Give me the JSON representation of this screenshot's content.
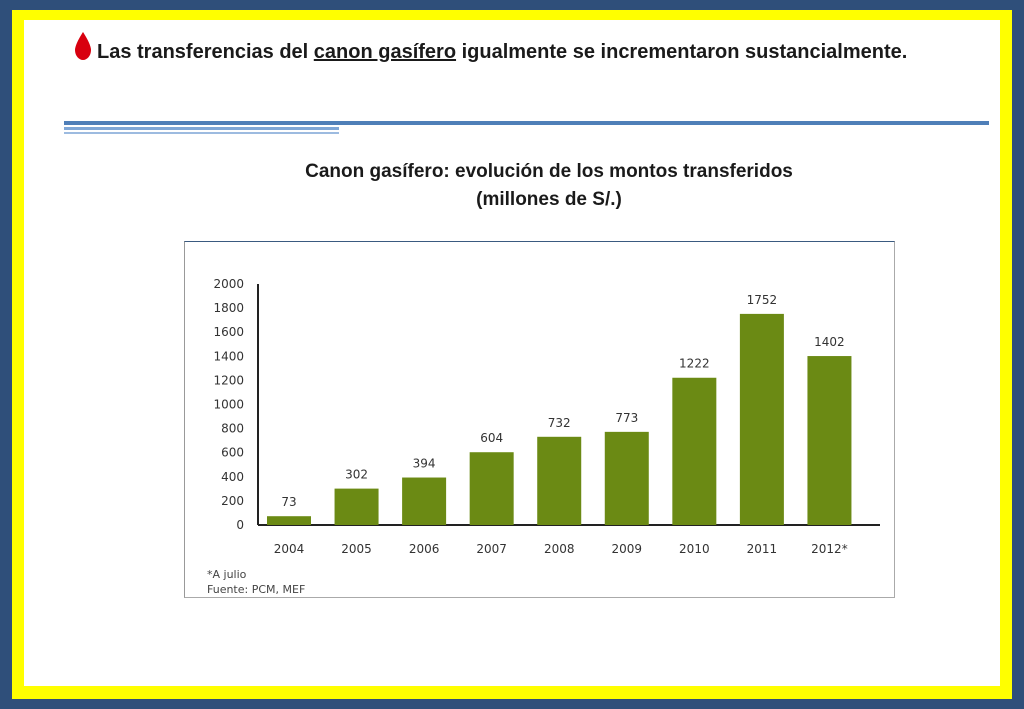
{
  "slide": {
    "headline_part1": "Las transferencias del ",
    "headline_underlined": "canon gasífero",
    "headline_part2": " igualmente  se incrementaron sustancialmente."
  },
  "chart_data": {
    "type": "bar",
    "title": "Canon gasífero: evolución de los montos transferidos",
    "subtitle": "(millones de S/.)",
    "categories": [
      "2004",
      "2005",
      "2006",
      "2007",
      "2008",
      "2009",
      "2010",
      "2011",
      "2012*"
    ],
    "values": [
      73,
      302,
      394,
      604,
      732,
      773,
      1222,
      1752,
      1402
    ],
    "data_labels": [
      "73",
      "302",
      "394",
      "604",
      "732",
      "773",
      "1222",
      "1752",
      "1402"
    ],
    "ylim": [
      0,
      2000
    ],
    "yticks": [
      0,
      200,
      400,
      600,
      800,
      1000,
      1200,
      1400,
      1600,
      1800,
      2000
    ],
    "ytick_labels": [
      "0",
      "200",
      "400",
      "600",
      "800",
      "1000",
      "1200",
      "1400",
      "1600",
      "1800",
      "2000"
    ],
    "xlabel": "",
    "ylabel": "",
    "grid": false,
    "bar_color": "#6b8a14",
    "notes": [
      "*A julio",
      "Fuente: PCM, MEF"
    ]
  },
  "colors": {
    "frame_blue": "#2f4f7a",
    "frame_yellow": "#ffff00",
    "bullet_red": "#d8000f",
    "rule_blue": "#4f7fb8"
  },
  "icons": {
    "bullet": "drop-icon"
  }
}
